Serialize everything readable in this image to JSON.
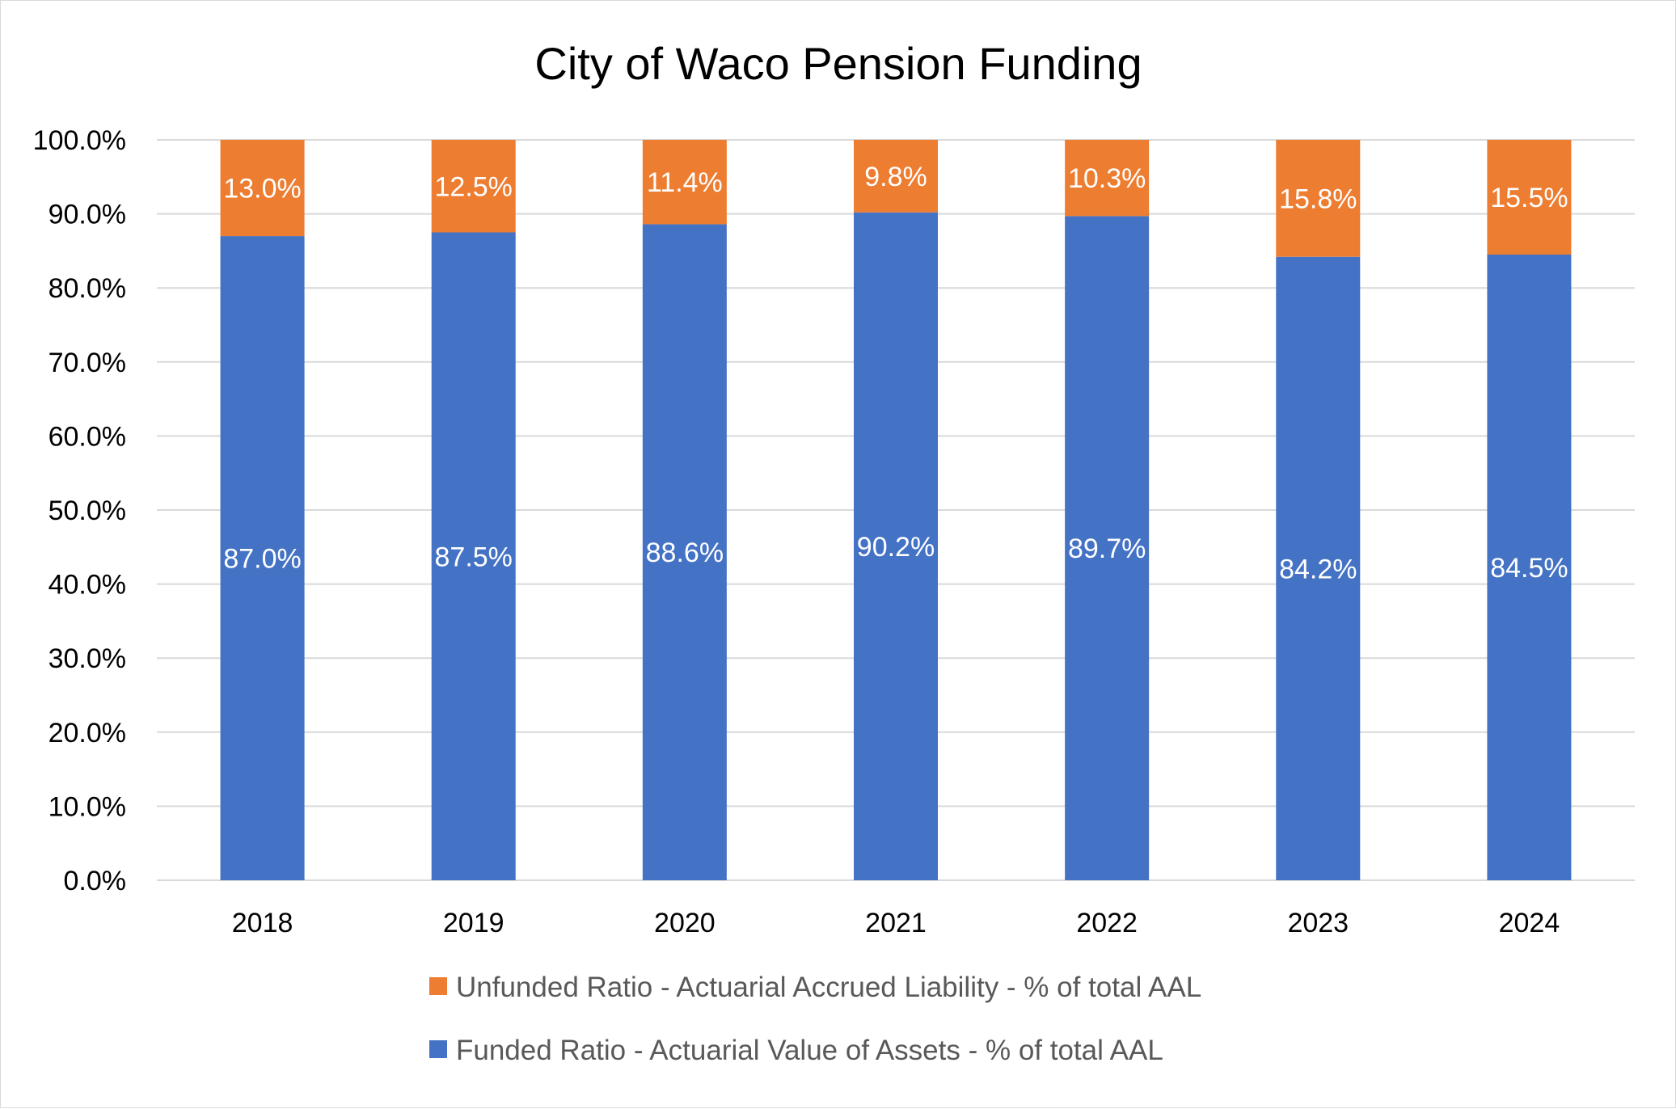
{
  "chart_data": {
    "type": "bar",
    "stacked": true,
    "title": "City of Waco Pension Funding",
    "xlabel": "",
    "ylabel": "",
    "ylim": [
      0,
      100
    ],
    "ytick_step": 10,
    "ytick_labels": [
      "0.0%",
      "10.0%",
      "20.0%",
      "30.0%",
      "40.0%",
      "50.0%",
      "60.0%",
      "70.0%",
      "80.0%",
      "90.0%",
      "100.0%"
    ],
    "grid": true,
    "legend_position": "bottom",
    "categories": [
      "2018",
      "2019",
      "2020",
      "2021",
      "2022",
      "2023",
      "2024"
    ],
    "series": [
      {
        "name": "Funded Ratio - Actuarial Value of Assets - % of total AAL",
        "color": "#4472C4",
        "values": [
          87.0,
          87.5,
          88.6,
          90.2,
          89.7,
          84.2,
          84.5
        ],
        "labels": [
          "87.0%",
          "87.5%",
          "88.6%",
          "90.2%",
          "89.7%",
          "84.2%",
          "84.5%"
        ]
      },
      {
        "name": "Unfunded Ratio - Actuarial Accrued Liability - % of total AAL",
        "color": "#ED7D31",
        "values": [
          13.0,
          12.5,
          11.4,
          9.8,
          10.3,
          15.8,
          15.5
        ],
        "labels": [
          "13.0%",
          "12.5%",
          "11.4%",
          "9.8%",
          "10.3%",
          "15.8%",
          "15.5%"
        ]
      }
    ],
    "legend_order": [
      1,
      0
    ]
  }
}
